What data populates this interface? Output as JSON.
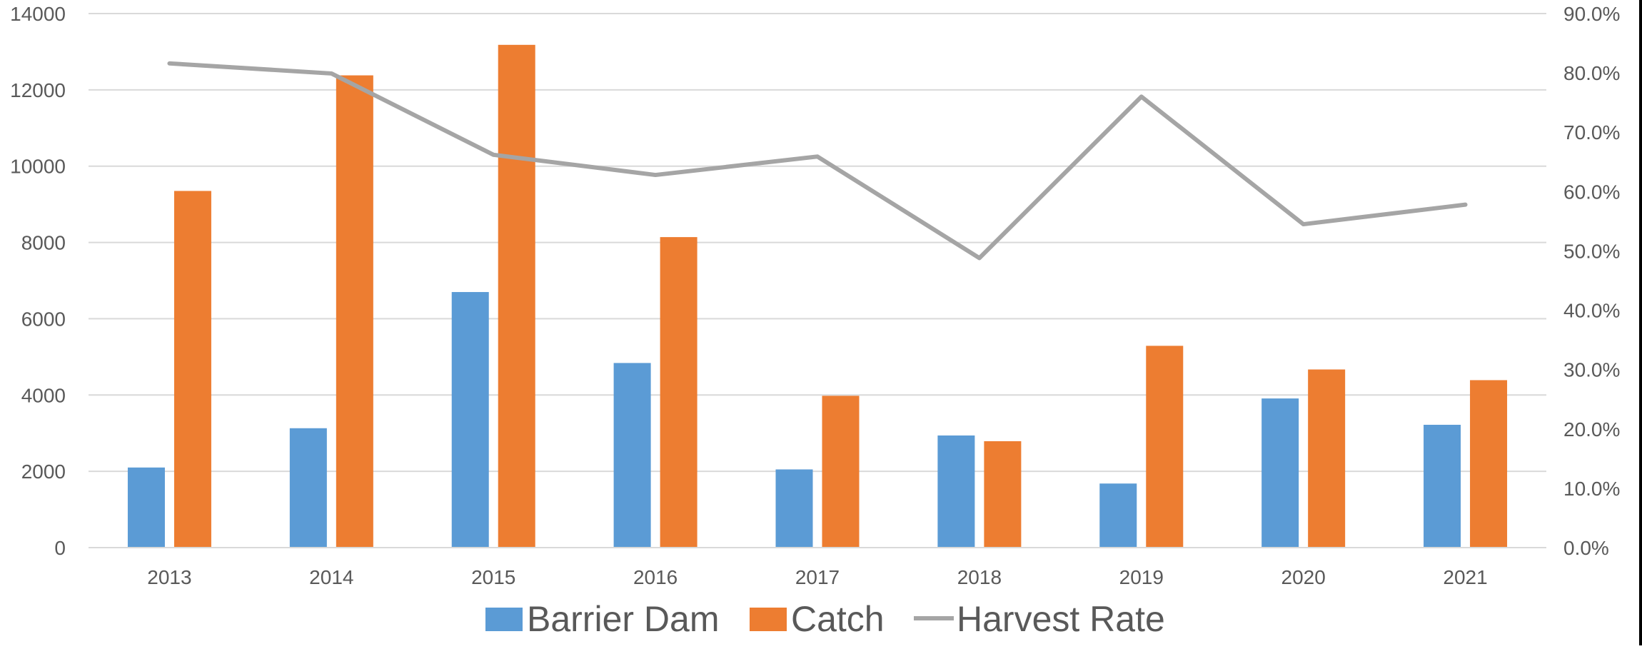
{
  "chart_data": {
    "type": "bar",
    "categories": [
      "2013",
      "2014",
      "2015",
      "2016",
      "2017",
      "2018",
      "2019",
      "2020",
      "2021"
    ],
    "series": [
      {
        "name": "Barrier Dam",
        "type": "bar",
        "axis": "left",
        "color": "#5B9BD5",
        "values": [
          2100,
          3130,
          6700,
          4840,
          2050,
          2940,
          1680,
          3910,
          3220
        ]
      },
      {
        "name": "Catch",
        "type": "bar",
        "axis": "left",
        "color": "#ED7D31",
        "values": [
          9350,
          12380,
          13180,
          8140,
          3980,
          2790,
          5290,
          4670,
          4390
        ]
      },
      {
        "name": "Harvest Rate",
        "type": "line",
        "axis": "right",
        "color": "#A5A5A5",
        "values": [
          0.816,
          0.799,
          0.662,
          0.628,
          0.659,
          0.488,
          0.76,
          0.545,
          0.578
        ]
      }
    ],
    "y_left": {
      "min": 0,
      "max": 14000,
      "ticks": [
        "0",
        "2000",
        "4000",
        "6000",
        "8000",
        "10000",
        "12000",
        "14000"
      ]
    },
    "y_right": {
      "min": 0,
      "max": 0.9,
      "ticks": [
        "0.0%",
        "10.0%",
        "20.0%",
        "30.0%",
        "40.0%",
        "50.0%",
        "60.0%",
        "70.0%",
        "80.0%",
        "90.0%"
      ]
    },
    "grid": true,
    "gridline_color": "#D9D9D9",
    "legend_position": "bottom",
    "title": "",
    "xlabel": "",
    "ylabel": ""
  }
}
